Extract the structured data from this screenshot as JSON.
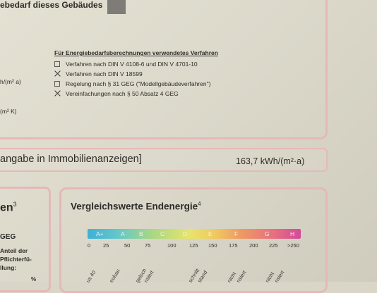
{
  "header": {
    "gebaeude_text": "ebedarf dieses Gebäudes"
  },
  "verfahren": {
    "title": "Für Energiebedarfsberechnungen verwendetes Verfahren",
    "options": [
      {
        "label": "Verfahren nach DIN V 4108-6 und DIN V 4701-10",
        "checked": false
      },
      {
        "label": "Verfahren nach DIN V 18599",
        "checked": true
      },
      {
        "label": "Regelung nach § 31 GEG (\"Modellgebäudeverfahren\")",
        "checked": false
      },
      {
        "label": "Vereinfachungen nach § 50 Absatz 4 GEG",
        "checked": true
      }
    ]
  },
  "left_units": {
    "unit1": "h/(m² a)",
    "unit2": "(m² K)"
  },
  "anzeigen": {
    "label": "angabe in Immobilienanzeigen]",
    "value": "163,7 kWh/(m²·a)"
  },
  "left_panel": {
    "title": "en",
    "title_sup": "3",
    "geg": "GEG",
    "text_lines": [
      "Anteil der",
      "Pflichterfü-",
      "llung:"
    ],
    "pct": "%"
  },
  "vergleich": {
    "title": "Vergleichswerte Endenergie",
    "title_sup": "4",
    "classes": [
      "A+",
      "A",
      "B",
      "C",
      "D",
      "E",
      "F",
      "G",
      "H"
    ],
    "ticks": [
      "0",
      "25",
      "50",
      "75",
      "100",
      "125",
      "150",
      "175",
      "200",
      "225",
      ">250"
    ],
    "rotated_labels": [
      "us 40",
      "eubau",
      "gelsch",
      "nsiert",
      "schnitt",
      "stand",
      "nicht",
      "nsiert",
      "nicht",
      "nsiert"
    ]
  },
  "colors": {
    "frame": "#e4b9b6",
    "paper": "#dcd9cb"
  }
}
